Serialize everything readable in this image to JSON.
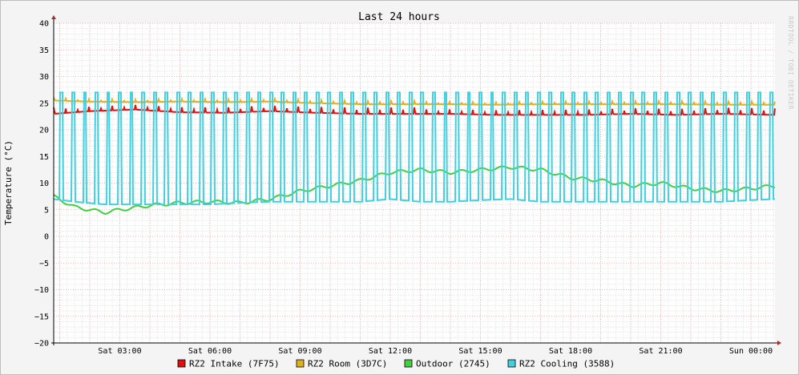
{
  "chart_data": {
    "type": "line",
    "title": "Last 24 hours",
    "xlabel": "",
    "ylabel": "Temperature (°C)",
    "side_label": "RRDTOOL / TOBI OETIKER",
    "ylim": [
      -20,
      40
    ],
    "yticks": [
      "40",
      "35",
      "30",
      "25",
      "20",
      "15",
      "10",
      "5",
      "0",
      "−5",
      "−10",
      "−15",
      "−20"
    ],
    "xlim": [
      0.8,
      24.8
    ],
    "xticks": [
      {
        "t": 3,
        "label": "Sat 03:00"
      },
      {
        "t": 6,
        "label": "Sat 06:00"
      },
      {
        "t": 9,
        "label": "Sat 09:00"
      },
      {
        "t": 12,
        "label": "Sat 12:00"
      },
      {
        "t": 15,
        "label": "Sat 15:00"
      },
      {
        "t": 18,
        "label": "Sat 18:00"
      },
      {
        "t": 21,
        "label": "Sat 21:00"
      },
      {
        "t": 24,
        "label": "Sun 00:00"
      }
    ],
    "grid": true,
    "legend_position": "bottom",
    "series": [
      {
        "name": "RZ2 Intake (7F75)",
        "color": "#e01010",
        "x": [
          0.8,
          2.0,
          3.5,
          5.0,
          6.5,
          8.0,
          9.5,
          11.0,
          12.5,
          14.0,
          15.5,
          17.0,
          18.5,
          20.0,
          21.5,
          23.0,
          24.8
        ],
        "y": [
          23.0,
          23.5,
          23.8,
          23.3,
          23.2,
          23.5,
          23.2,
          23.0,
          23.0,
          23.0,
          22.8,
          22.8,
          22.8,
          23.0,
          22.8,
          23.0,
          22.8
        ]
      },
      {
        "name": "RZ2 Room (3D7C)",
        "color": "#e0b020",
        "x": [
          0.8,
          2.0,
          3.5,
          5.0,
          6.5,
          8.0,
          9.5,
          11.0,
          12.5,
          14.0,
          15.5,
          17.0,
          18.5,
          20.0,
          21.5,
          23.0,
          24.8
        ],
        "y": [
          25.5,
          25.3,
          25.2,
          25.3,
          25.2,
          25.3,
          25.0,
          24.8,
          24.8,
          24.8,
          24.7,
          24.8,
          24.8,
          24.8,
          24.8,
          24.7,
          24.7
        ]
      },
      {
        "name": "Outdoor (2745)",
        "color": "#40d040",
        "x": [
          0.8,
          1.5,
          2.5,
          3.0,
          4.0,
          5.0,
          6.0,
          7.0,
          8.0,
          9.0,
          10.0,
          11.0,
          12.0,
          13.0,
          14.0,
          15.0,
          16.0,
          17.0,
          18.0,
          19.0,
          20.0,
          21.0,
          22.0,
          23.0,
          24.0,
          24.8
        ],
        "y": [
          7.5,
          5.5,
          4.5,
          5.0,
          5.8,
          6.3,
          6.5,
          6.3,
          7.0,
          8.5,
          9.5,
          10.5,
          12.0,
          12.5,
          12.0,
          12.5,
          13.0,
          12.5,
          11.0,
          10.5,
          9.5,
          10.0,
          9.0,
          8.5,
          9.0,
          9.5
        ]
      },
      {
        "name": "RZ2 Cooling (3588)",
        "color": "#40d0e0",
        "x": [
          0.8,
          1.5,
          2.5,
          3.0,
          4.0,
          5.0,
          6.0,
          7.0,
          8.0,
          9.0,
          10.0,
          11.0,
          12.0,
          13.0,
          14.0,
          15.0,
          16.0,
          17.0,
          18.0,
          19.0,
          20.0,
          21.0,
          22.0,
          23.0,
          24.0,
          24.8
        ],
        "y": [
          7.0,
          6.5,
          6.0,
          6.0,
          6.0,
          6.0,
          6.0,
          6.3,
          6.5,
          6.5,
          6.5,
          6.5,
          7.0,
          6.5,
          6.5,
          6.8,
          7.0,
          6.5,
          6.5,
          6.5,
          6.5,
          6.5,
          6.5,
          6.5,
          6.8,
          7.0
        ],
        "peaks": 27
      }
    ]
  }
}
